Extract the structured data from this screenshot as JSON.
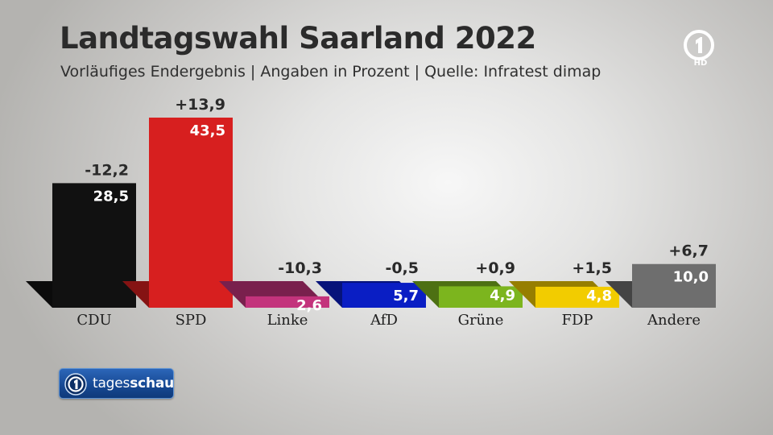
{
  "header": {
    "title": "Landtagswahl Saarland 2022",
    "subtitle": "Vorläufiges Endergebnis | Angaben in Prozent | Quelle: Infratest dimap"
  },
  "logo": {
    "channel_icon": "ard-one-logo",
    "badge": "HD"
  },
  "brand": {
    "icon": "tagesschau-logo-icon",
    "text_light": "tages",
    "text_bold": "schau"
  },
  "chart_data": {
    "type": "bar",
    "title": "Landtagswahl Saarland 2022",
    "subtitle": "Vorläufiges Endergebnis | Angaben in Prozent | Quelle: Infratest dimap",
    "categories": [
      "CDU",
      "SPD",
      "Linke",
      "AfD",
      "Grüne",
      "FDP",
      "Andere"
    ],
    "values": [
      28.5,
      43.5,
      2.6,
      5.7,
      4.9,
      4.8,
      10.0
    ],
    "value_labels": [
      "28,5",
      "43,5",
      "2,6",
      "5,7",
      "4,9",
      "4,8",
      "10,0"
    ],
    "change_values": [
      -12.2,
      13.9,
      -10.3,
      -0.5,
      0.9,
      1.5,
      6.7
    ],
    "change_labels": [
      "-12,2",
      "+13,9",
      "-10,3",
      "-0,5",
      "+0,9",
      "+1,5",
      "+6,7"
    ],
    "colors": [
      "#111111",
      "#d71f1f",
      "#c3337c",
      "#0a1ec4",
      "#7cb51e",
      "#f2cc00",
      "#6e6e6e"
    ],
    "ylim": [
      0,
      43.5
    ],
    "grid": false,
    "legend": "none"
  }
}
